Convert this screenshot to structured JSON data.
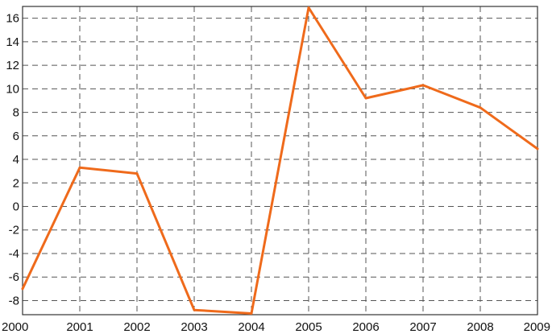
{
  "colors": {
    "line": "#ef6a1b",
    "grid": "#555555",
    "text": "#111111"
  },
  "chart_data": {
    "type": "line",
    "title": "",
    "xlabel": "",
    "ylabel": "",
    "x": [
      "2000",
      "2001",
      "2002",
      "2003",
      "2004",
      "2005",
      "2006",
      "2007",
      "2008",
      "2009"
    ],
    "series": [
      {
        "values": [
          -7.0,
          3.3,
          2.8,
          -8.8,
          -9.1,
          16.9,
          9.2,
          10.3,
          8.4,
          4.9
        ]
      }
    ],
    "xlim": [
      2000,
      2009
    ],
    "ylim": [
      -9.2,
      17.0
    ],
    "yticks": [
      -8,
      -6,
      -4,
      -2,
      0,
      2,
      4,
      6,
      8,
      10,
      12,
      14,
      16
    ],
    "ytick_labels": [
      "-8",
      "-6",
      "-4",
      "-2",
      "0",
      "2",
      "4",
      "6",
      "8",
      "10",
      "12",
      "14",
      "16"
    ],
    "grid": true,
    "legend": "none"
  }
}
